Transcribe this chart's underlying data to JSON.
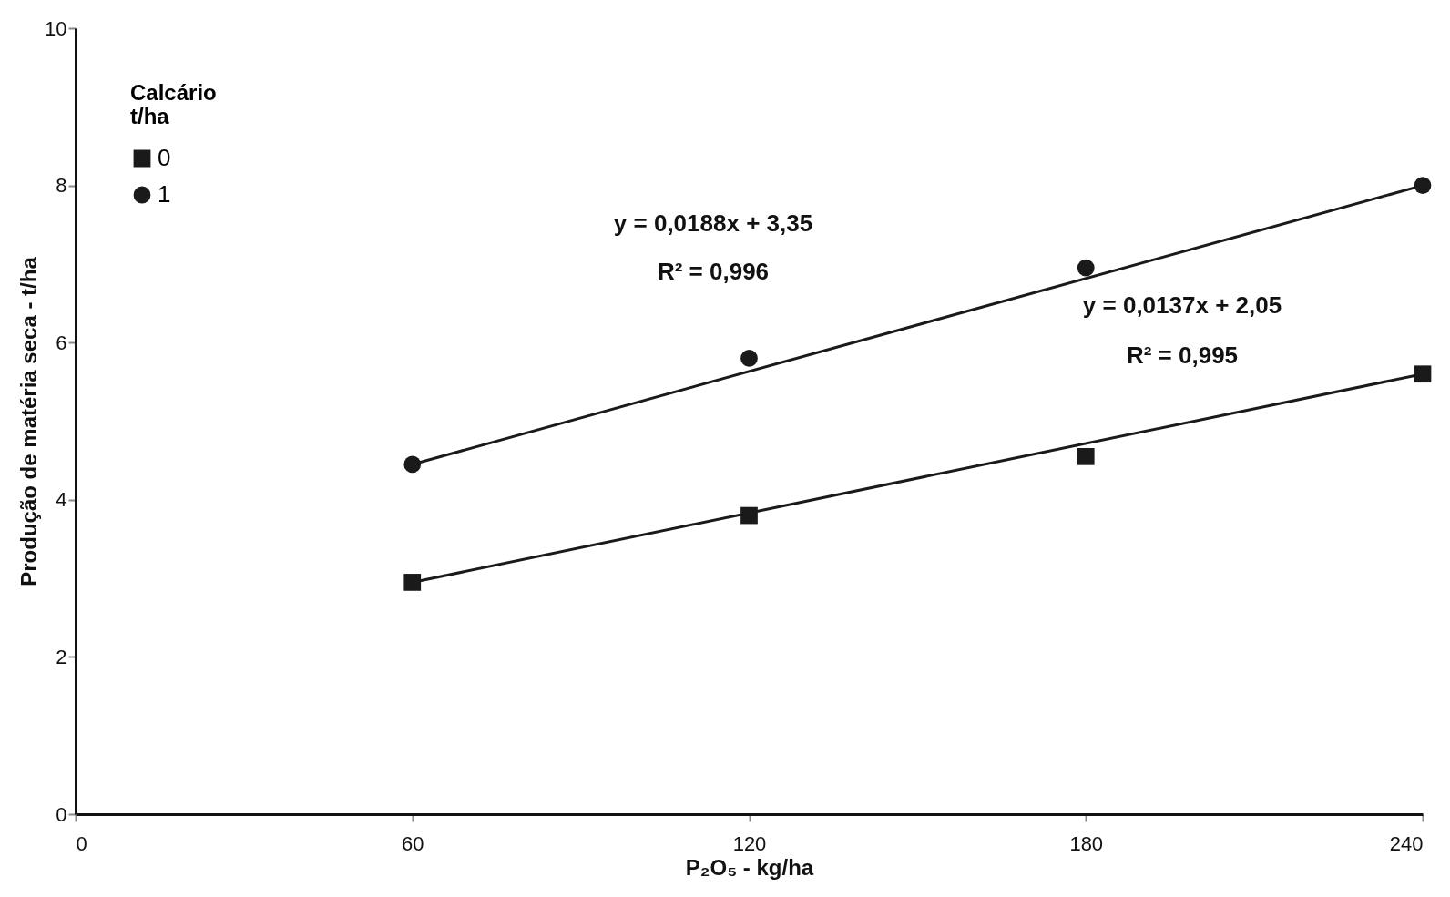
{
  "chart_data": {
    "type": "scatter",
    "xlabel": "P₂O₅ - kg/ha",
    "ylabel": "Produção de matéria seca - t/ha",
    "legend_title": "Calcário\nt/ha",
    "xlim": [
      0,
      240
    ],
    "xticks": [
      0,
      60,
      120,
      180,
      240
    ],
    "ylim": [
      0,
      10
    ],
    "yticks": [
      0,
      2,
      4,
      6,
      8,
      10
    ],
    "grid": false,
    "legend": "top left",
    "series": [
      {
        "name": "0",
        "marker": "square",
        "color": "#1a1a1a",
        "x": [
          60,
          120,
          180,
          240
        ],
        "values": [
          2.95,
          3.8,
          4.55,
          5.6
        ]
      },
      {
        "name": "1",
        "marker": "circle",
        "color": "#1a1a1a",
        "x": [
          60,
          120,
          180,
          240
        ],
        "values": [
          4.45,
          5.8,
          6.95,
          8.0
        ]
      },
      {
        "type": "line",
        "color": "#1a1a1a",
        "x": [
          60,
          240
        ],
        "values": [
          2.95,
          5.6
        ]
      },
      {
        "type": "line",
        "color": "#1a1a1a",
        "x": [
          60,
          240
        ],
        "values": [
          4.45,
          8.0
        ]
      }
    ],
    "annotations": [
      "y = 0,0188x + 3,35",
      "R² = 0,996",
      "y = 0,0137x + 2,05",
      "R² = 0,995"
    ]
  }
}
